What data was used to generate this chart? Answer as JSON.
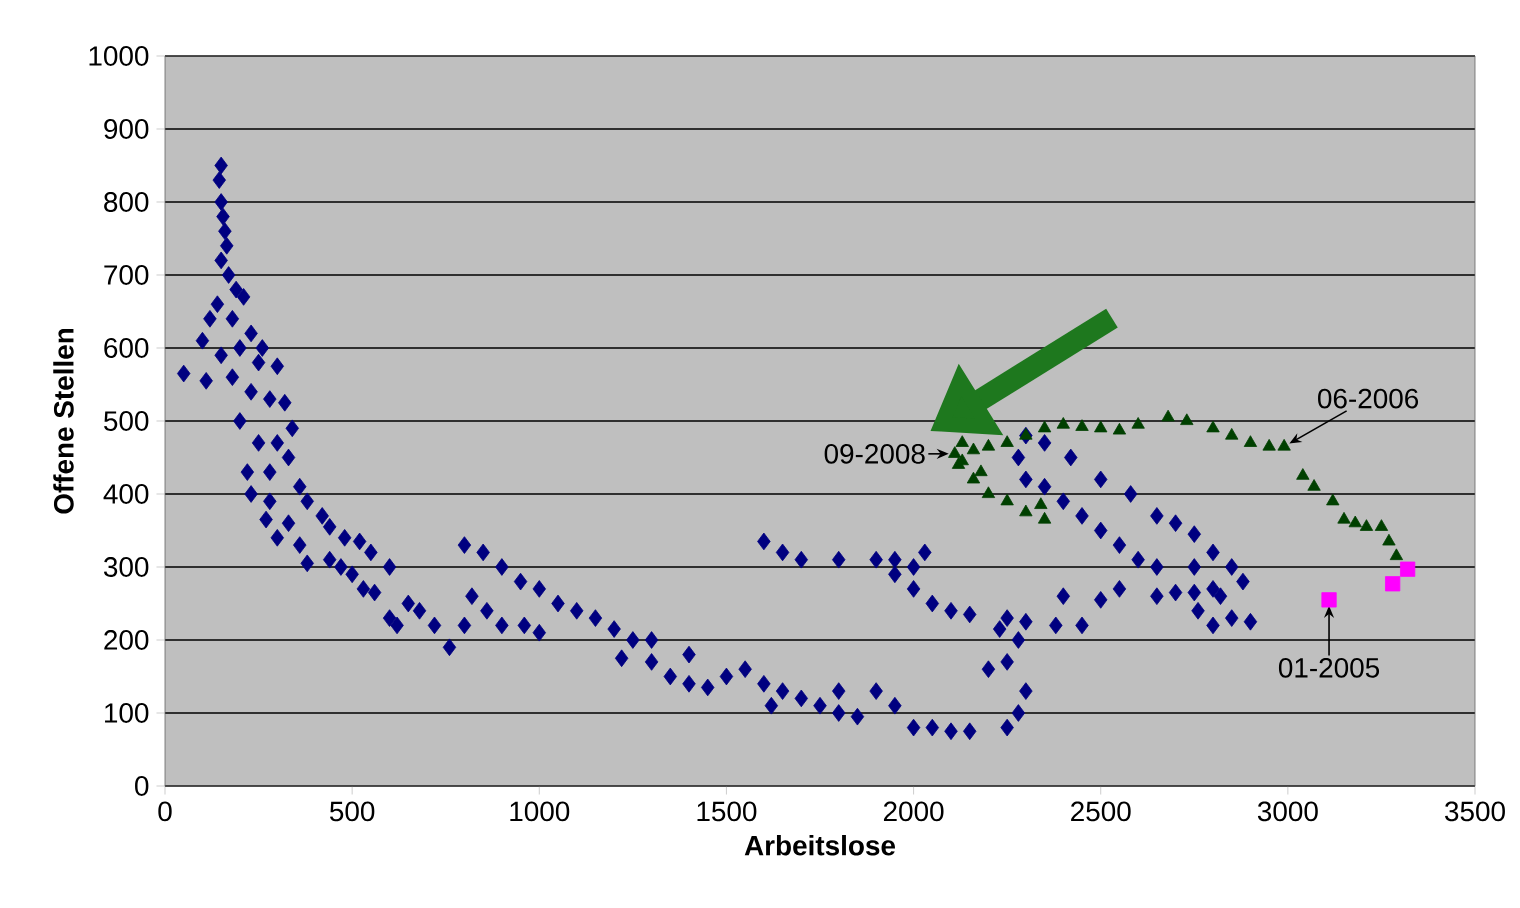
{
  "chart_data": {
    "type": "scatter",
    "xlabel": "Arbeitslose",
    "ylabel": "Offene Stellen",
    "xlim": [
      0,
      3500
    ],
    "ylim": [
      0,
      1000
    ],
    "xticks": [
      0,
      500,
      1000,
      1500,
      2000,
      2500,
      3000,
      3500
    ],
    "yticks": [
      0,
      100,
      200,
      300,
      400,
      500,
      600,
      700,
      800,
      900,
      1000
    ],
    "grid": "y",
    "series": [
      {
        "color": "#000080",
        "marker": "diamond",
        "x": [
          150,
          145,
          150,
          155,
          160,
          165,
          150,
          170,
          190,
          140,
          210,
          120,
          180,
          230,
          100,
          200,
          260,
          150,
          250,
          300,
          50,
          110,
          180,
          230,
          280,
          320,
          200,
          340,
          300,
          250,
          330,
          220,
          280,
          360,
          230,
          280,
          380,
          420,
          270,
          330,
          440,
          300,
          480,
          360,
          520,
          380,
          440,
          550,
          470,
          500,
          600,
          530,
          560,
          650,
          600,
          620,
          680,
          720,
          760,
          800,
          820,
          860,
          800,
          850,
          900,
          950,
          1000,
          1050,
          900,
          960,
          1000,
          1100,
          1150,
          1200,
          1250,
          1220,
          1300,
          1350,
          1400,
          1450,
          1500,
          1300,
          1400,
          1550,
          1600,
          1650,
          1700,
          1750,
          1800,
          1850,
          1620,
          1800,
          1900,
          1950,
          2000,
          2050,
          2100,
          2150,
          2250,
          2280,
          2300,
          2250,
          2200,
          2280,
          2230,
          2150,
          2100,
          2050,
          2000,
          1950,
          2000,
          2030,
          1950,
          1900,
          1800,
          1700,
          1650,
          1600,
          2250,
          2300,
          2380,
          2450,
          2500,
          2400,
          2550,
          2650,
          2700,
          2750,
          2820,
          2850,
          2800,
          2900,
          2880,
          2850,
          2800,
          2750,
          2700,
          2650,
          2580,
          2500,
          2420,
          2350,
          2300,
          2280,
          2300,
          2350,
          2400,
          2450,
          2500,
          2550,
          2600,
          2650,
          2750,
          2800,
          2760
        ],
        "values": [
          850,
          830,
          800,
          780,
          760,
          740,
          720,
          700,
          680,
          660,
          670,
          640,
          640,
          620,
          610,
          600,
          600,
          590,
          580,
          575,
          565,
          555,
          560,
          540,
          530,
          525,
          500,
          490,
          470,
          470,
          450,
          430,
          430,
          410,
          400,
          390,
          390,
          370,
          365,
          360,
          355,
          340,
          340,
          330,
          335,
          305,
          310,
          320,
          300,
          290,
          300,
          270,
          265,
          250,
          230,
          220,
          240,
          220,
          190,
          220,
          260,
          240,
          330,
          320,
          300,
          280,
          270,
          250,
          220,
          220,
          210,
          240,
          230,
          215,
          200,
          175,
          170,
          150,
          140,
          135,
          150,
          200,
          180,
          160,
          140,
          130,
          120,
          110,
          100,
          95,
          110,
          130,
          130,
          110,
          80,
          80,
          75,
          75,
          80,
          100,
          130,
          170,
          160,
          200,
          215,
          235,
          240,
          250,
          270,
          290,
          300,
          320,
          310,
          310,
          310,
          310,
          320,
          335,
          230,
          225,
          220,
          220,
          255,
          260,
          270,
          260,
          265,
          265,
          260,
          230,
          220,
          225,
          280,
          300,
          320,
          345,
          360,
          370,
          400,
          420,
          450,
          470,
          480,
          450,
          420,
          410,
          390,
          370,
          350,
          330,
          310,
          300,
          300,
          270,
          240
        ]
      },
      {
        "color": "#004000",
        "marker": "triangle",
        "x": [
          2110,
          2130,
          2160,
          2200,
          2250,
          2300,
          2350,
          2400,
          2450,
          2500,
          2550,
          2600,
          2680,
          2730,
          2800,
          2850,
          2900,
          2950,
          2990,
          3040,
          3070,
          3120,
          3150,
          3180,
          3210,
          3250,
          3270,
          3290,
          2120,
          2160,
          2200,
          2250,
          2300,
          2350,
          2340,
          2180,
          2130
        ],
        "values": [
          455,
          470,
          460,
          465,
          470,
          480,
          490,
          495,
          492,
          490,
          487,
          495,
          505,
          500,
          490,
          480,
          470,
          465,
          465,
          425,
          410,
          390,
          365,
          360,
          355,
          355,
          335,
          315,
          440,
          420,
          400,
          390,
          375,
          365,
          385,
          430,
          445
        ]
      },
      {
        "color": "#ff00ff",
        "marker": "square",
        "x": [
          3110,
          3280,
          3320
        ],
        "values": [
          255,
          277,
          297
        ]
      }
    ],
    "annotations": [
      {
        "text": "09-2008",
        "x": 2110,
        "y": 455
      },
      {
        "text": "06-2006",
        "x": 2990,
        "y": 465
      },
      {
        "text": "01-2005",
        "x": 3110,
        "y": 255
      }
    ]
  }
}
